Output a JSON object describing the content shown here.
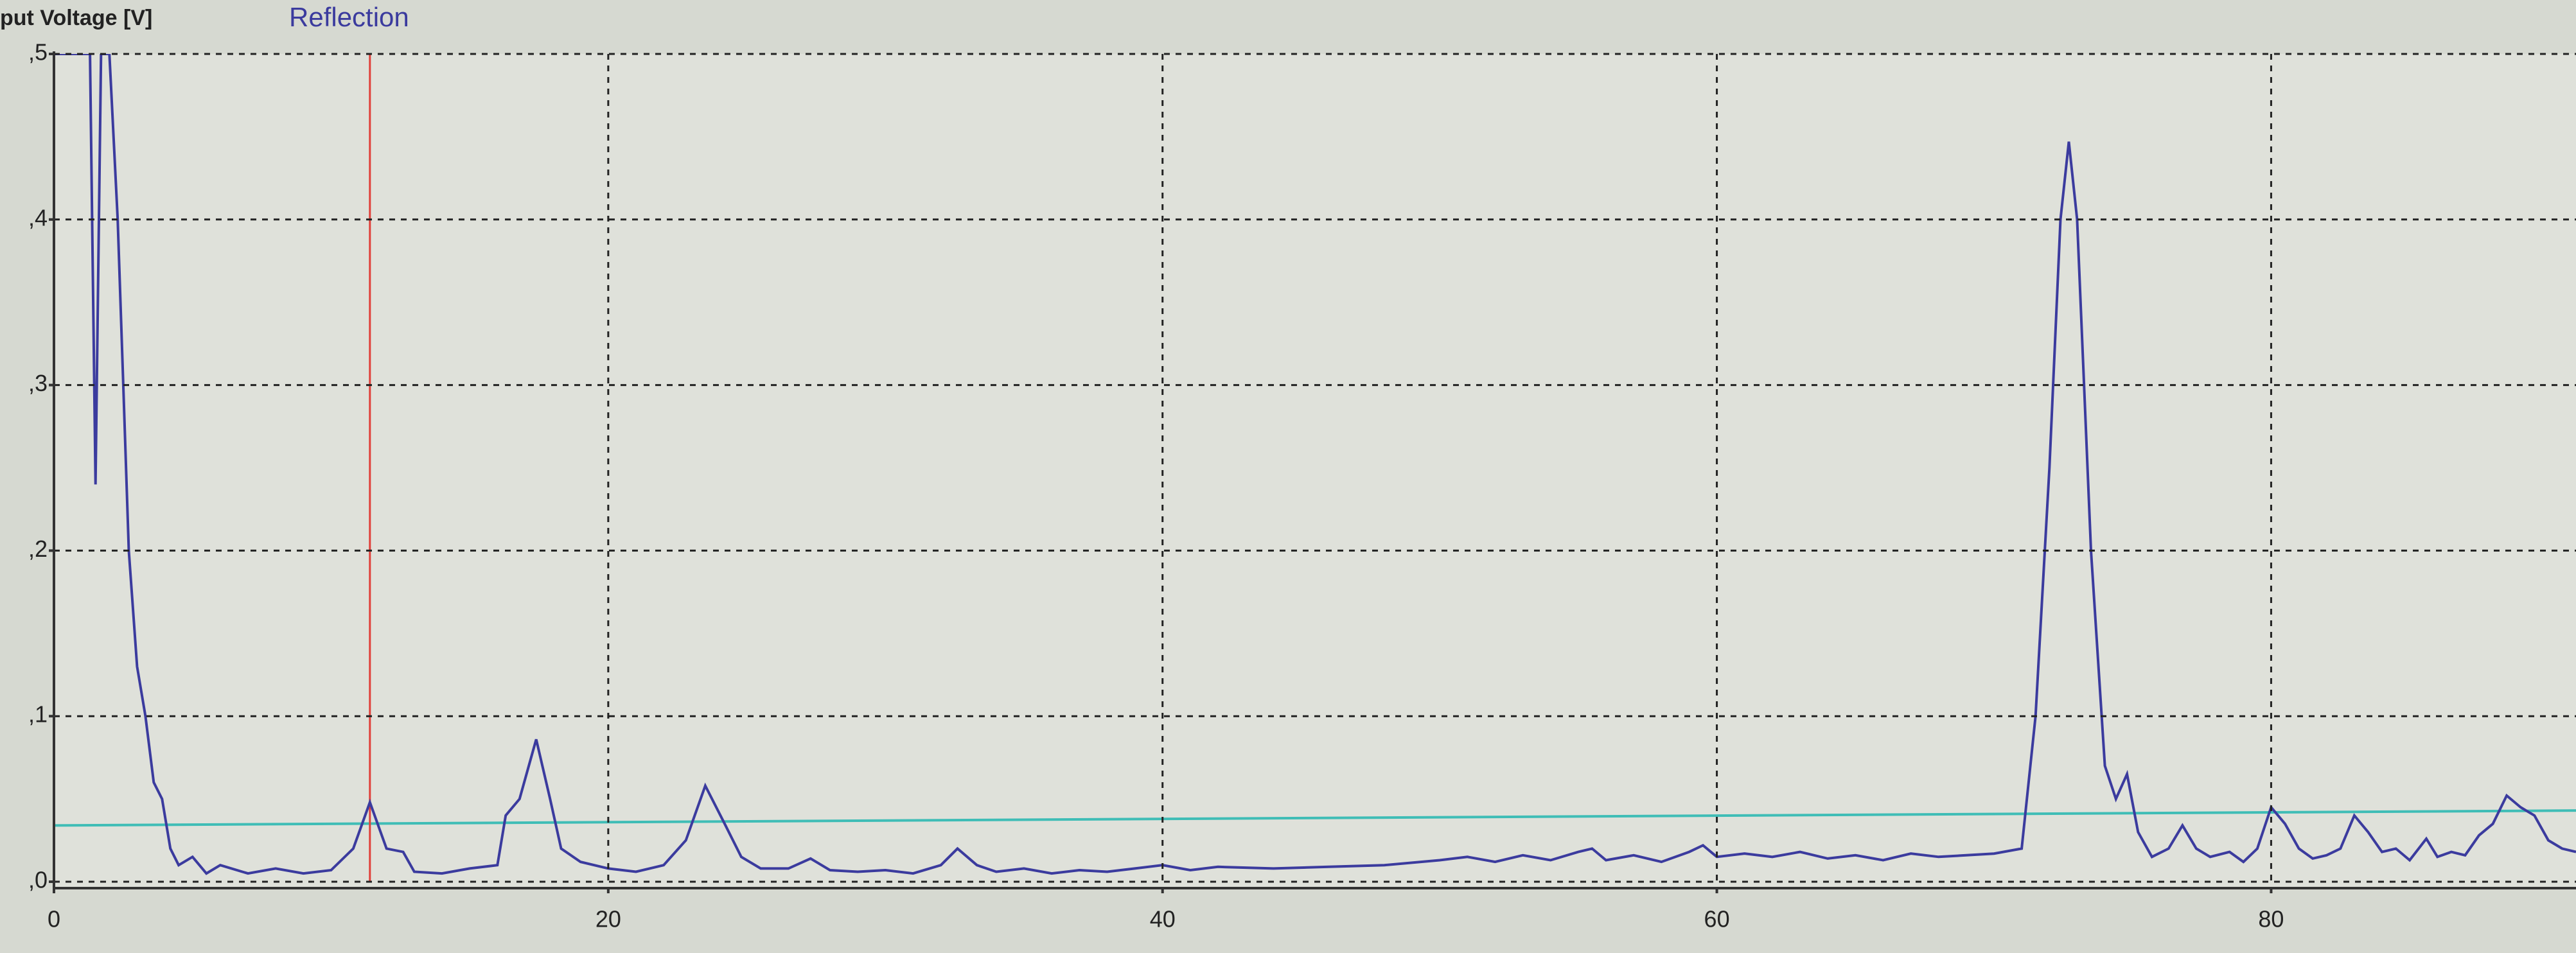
{
  "chart_data": {
    "type": "line",
    "title": "Reflection",
    "y_label": "put Voltage [V]",
    "xlim": [
      0,
      91
    ],
    "ylim": [
      0,
      0.5
    ],
    "xticks": [
      0,
      20,
      40,
      60,
      80
    ],
    "yticks": [
      {
        "value": 0,
        "label": ",0"
      },
      {
        "value": 0.1,
        "label": ",1"
      },
      {
        "value": 0.2,
        "label": ",2"
      },
      {
        "value": 0.3,
        "label": ",3"
      },
      {
        "value": 0.4,
        "label": ",4"
      },
      {
        "value": 0.5,
        "label": ",5"
      }
    ],
    "grid": true,
    "series": [
      {
        "color": "#3b3b9e",
        "x": [
          0,
          0.3,
          1.3,
          1.5,
          1.7,
          2.0,
          2.3,
          2.5,
          2.7,
          3.0,
          3.3,
          3.6,
          3.9,
          4.2,
          4.5,
          5,
          5.5,
          6,
          7,
          8,
          9,
          10,
          10.8,
          11.4,
          12,
          12.6,
          13,
          14,
          15,
          16,
          16.3,
          16.8,
          17.4,
          17.9,
          18.3,
          19,
          20,
          21,
          22,
          22.8,
          23.5,
          24.2,
          24.8,
          25.5,
          26.5,
          27.3,
          28,
          29,
          30,
          31,
          32,
          32.6,
          33.3,
          34,
          35,
          36,
          37,
          38,
          39,
          40,
          41,
          42,
          44,
          46,
          48,
          50,
          51,
          52,
          53,
          54,
          55,
          55.5,
          56,
          57,
          58,
          59,
          59.5,
          60,
          61,
          62,
          63,
          64,
          65,
          66,
          67,
          68,
          69,
          70,
          71,
          71.5,
          72,
          72.4,
          72.7,
          73,
          73.5,
          74,
          74.4,
          74.8,
          75.2,
          75.7,
          76.3,
          76.8,
          77.3,
          77.8,
          78.5,
          79,
          79.5,
          80,
          80.5,
          81,
          81.5,
          82,
          82.5,
          83,
          83.5,
          84,
          84.5,
          85,
          85.6,
          86,
          86.5,
          87,
          87.5,
          88,
          88.5,
          89,
          89.5,
          90,
          90.5,
          91
        ],
        "values": [
          0.5,
          0.5,
          0.5,
          0.24,
          0.5,
          0.5,
          0.4,
          0.3,
          0.2,
          0.13,
          0.1,
          0.06,
          0.05,
          0.02,
          0.01,
          0.015,
          0.005,
          0.01,
          0.005,
          0.008,
          0.005,
          0.007,
          0.02,
          0.048,
          0.02,
          0.018,
          0.006,
          0.005,
          0.008,
          0.01,
          0.04,
          0.05,
          0.086,
          0.05,
          0.02,
          0.012,
          0.008,
          0.006,
          0.01,
          0.025,
          0.058,
          0.035,
          0.015,
          0.008,
          0.008,
          0.014,
          0.007,
          0.006,
          0.007,
          0.005,
          0.01,
          0.02,
          0.01,
          0.006,
          0.008,
          0.005,
          0.007,
          0.006,
          0.008,
          0.01,
          0.007,
          0.009,
          0.008,
          0.009,
          0.01,
          0.013,
          0.015,
          0.012,
          0.016,
          0.013,
          0.018,
          0.02,
          0.013,
          0.016,
          0.012,
          0.018,
          0.022,
          0.015,
          0.017,
          0.015,
          0.018,
          0.014,
          0.016,
          0.013,
          0.017,
          0.015,
          0.016,
          0.017,
          0.02,
          0.1,
          0.25,
          0.4,
          0.447,
          0.4,
          0.2,
          0.07,
          0.05,
          0.065,
          0.03,
          0.015,
          0.02,
          0.034,
          0.02,
          0.015,
          0.018,
          0.012,
          0.02,
          0.045,
          0.035,
          0.02,
          0.014,
          0.016,
          0.02,
          0.04,
          0.03,
          0.018,
          0.02,
          0.013,
          0.026,
          0.015,
          0.018,
          0.016,
          0.028,
          0.035,
          0.052,
          0.045,
          0.04,
          0.025,
          0.02,
          0.018
        ]
      }
    ],
    "threshold": {
      "x": [
        0,
        91
      ],
      "values": [
        0.034,
        0.043
      ],
      "color": "#3fbdb6"
    },
    "marker": {
      "x": 11.4,
      "color": "#e0403a"
    }
  }
}
